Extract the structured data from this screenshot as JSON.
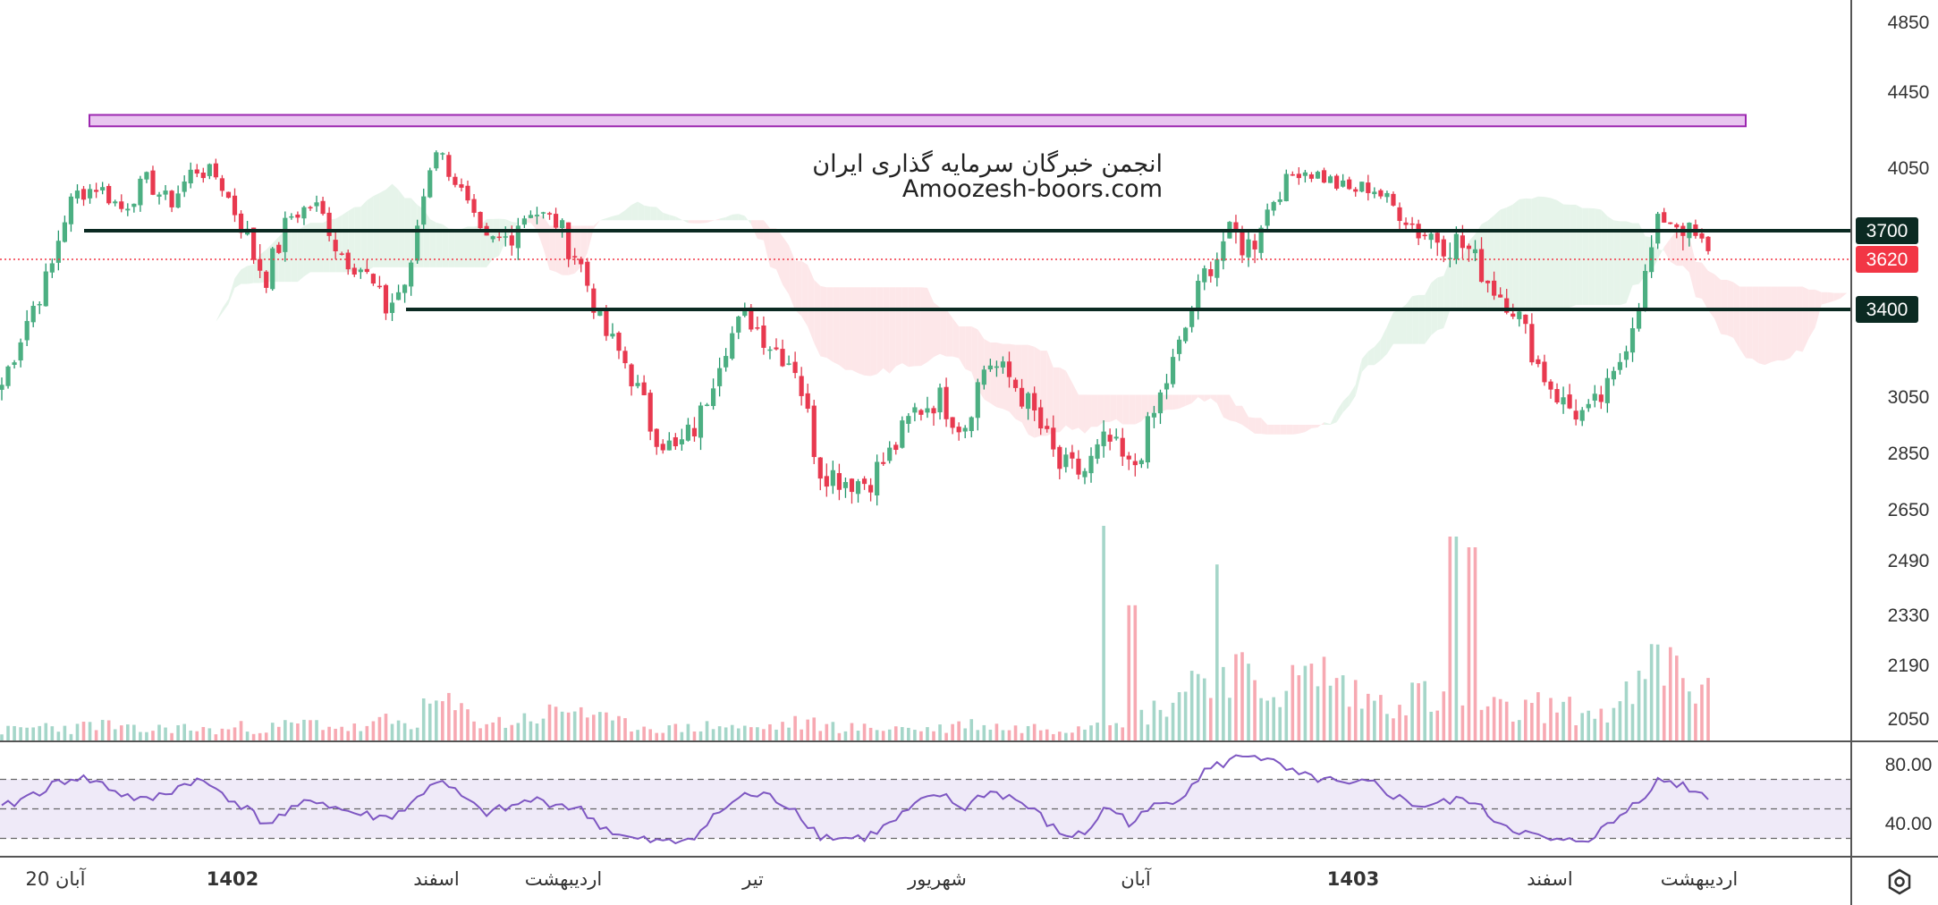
{
  "watermark": {
    "line1": "انجمن خبرگان سرمایه گذاری ایران",
    "line2": "Amoozesh-boors.com"
  },
  "chart_data": {
    "type": "candlestick",
    "price_axis": {
      "ticks": [
        "4850",
        "4450",
        "4050",
        "3700",
        "3620",
        "3400",
        "3050",
        "2850",
        "2650",
        "2490",
        "2330",
        "2190",
        "2050"
      ],
      "display_range": [
        2050,
        4850
      ]
    },
    "price_levels": [
      {
        "value": 3700,
        "label": "3700",
        "kind": "support-resistance"
      },
      {
        "value": 3400,
        "label": "3400",
        "kind": "support-resistance"
      }
    ],
    "current_price": {
      "value": 3620,
      "label": "3620",
      "color": "#f23645"
    },
    "resistance_zone": {
      "low": 4270,
      "high": 4330,
      "color": "#9c27b0"
    },
    "time_axis": {
      "labels": [
        {
          "text": "20 آبان",
          "bold": false
        },
        {
          "text": "1402",
          "bold": true
        },
        {
          "text": "اسفند",
          "bold": false
        },
        {
          "text": "اردیبهشت",
          "bold": false
        },
        {
          "text": "تیر",
          "bold": false
        },
        {
          "text": "شهریور",
          "bold": false
        },
        {
          "text": "آبان",
          "bold": false
        },
        {
          "text": "1403",
          "bold": true
        },
        {
          "text": "اسفند",
          "bold": false
        },
        {
          "text": "اردیبهشت",
          "bold": false
        }
      ]
    },
    "price_path": [
      3100,
      3350,
      3560,
      3900,
      3950,
      3820,
      3980,
      3850,
      4050,
      4000,
      3720,
      3540,
      3780,
      3850,
      3650,
      3580,
      3400,
      3550,
      4180,
      3950,
      3640,
      3680,
      3820,
      3750,
      3620,
      3320,
      3180,
      2950,
      2850,
      2960,
      3250,
      3380,
      3260,
      3180,
      2800,
      2760,
      2750,
      2850,
      3000,
      3050,
      2940,
      3200,
      3120,
      2980,
      2800,
      2780,
      2900,
      2780,
      3000,
      3250,
      3550,
      3700,
      3650,
      3900,
      4050,
      4000,
      3920,
      3950,
      3820,
      3700,
      3680,
      3650,
      3500,
      3400,
      3160,
      3020,
      2980,
      3100,
      3400,
      3780,
      3720,
      3620
    ],
    "volume_profile": [
      5,
      6,
      8,
      6,
      9,
      6,
      5,
      7,
      6,
      5,
      7,
      6,
      8,
      9,
      7,
      6,
      10,
      8,
      20,
      15,
      10,
      9,
      12,
      14,
      18,
      10,
      8,
      7,
      6,
      7,
      8,
      6,
      7,
      9,
      8,
      7,
      6,
      7,
      6,
      6,
      9,
      8,
      6,
      7,
      6,
      8,
      14,
      11,
      16,
      25,
      38,
      45,
      25,
      28,
      30,
      36,
      25,
      20,
      22,
      24,
      18,
      15,
      16,
      14,
      18,
      16,
      14,
      15,
      25,
      42,
      34,
      22
    ],
    "volume_spikes": [
      {
        "at": 0.645,
        "value": 100
      },
      {
        "at": 0.663,
        "value": 63
      },
      {
        "at": 0.713,
        "value": 82
      },
      {
        "at": 0.85,
        "value": 95
      },
      {
        "at": 0.862,
        "value": 90
      }
    ],
    "rsi": {
      "ticks": [
        "80.00",
        "40.00"
      ],
      "levels": [
        70,
        50,
        30
      ],
      "display_range": [
        20,
        90
      ],
      "path": [
        50,
        58,
        65,
        72,
        68,
        60,
        55,
        62,
        70,
        63,
        52,
        40,
        48,
        57,
        50,
        46,
        44,
        52,
        70,
        60,
        47,
        50,
        56,
        54,
        50,
        38,
        30,
        28,
        27,
        34,
        50,
        60,
        58,
        50,
        32,
        30,
        31,
        40,
        52,
        60,
        50,
        62,
        58,
        48,
        33,
        32,
        52,
        40,
        52,
        58,
        75,
        82,
        88,
        80,
        72,
        70,
        65,
        68,
        58,
        52,
        54,
        57,
        44,
        36,
        30,
        27,
        30,
        40,
        55,
        70,
        66,
        58
      ]
    }
  }
}
